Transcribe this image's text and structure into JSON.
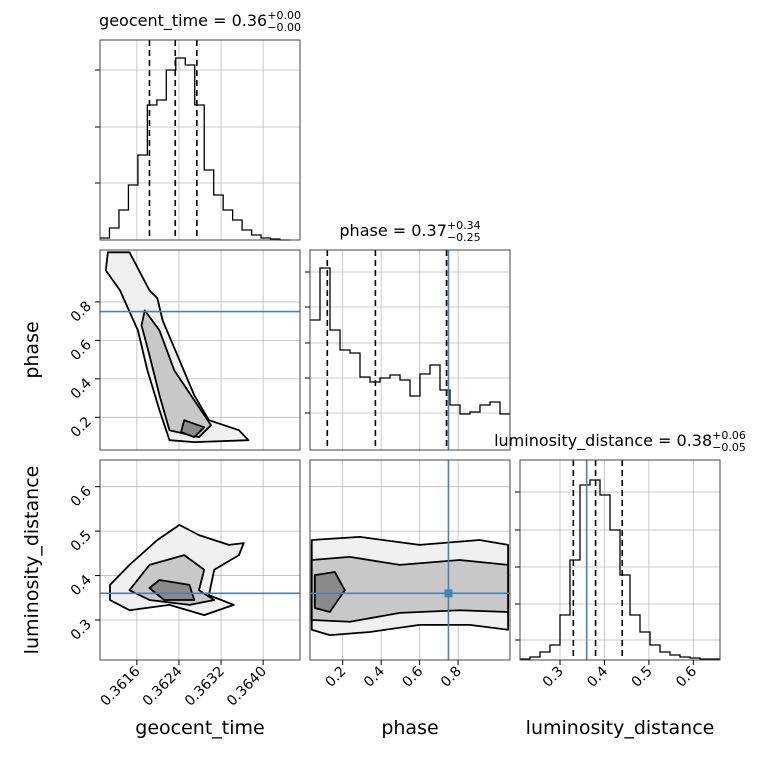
{
  "chart_data": {
    "type": "corner",
    "truth_color": "#4682b4",
    "grid": true,
    "parameters": [
      {
        "name": "geocent_time",
        "lim": [
          0.3609,
          0.3647
        ],
        "ticks": [
          0.3616,
          0.3624,
          0.3632,
          {
            "value": 0.364,
            "label": "0.3640"
          }
        ],
        "quantiles": [
          0.36184,
          0.36233,
          0.36274
        ],
        "title": {
          "text": "geocent_time = 0.36",
          "upper": "+0.00",
          "lower": "−0.00"
        },
        "hist": {
          "bins": [
            0.3609,
            0.36108,
            0.36126,
            0.36144,
            0.36162,
            0.3618,
            0.36198,
            0.36216,
            0.36234,
            0.36252,
            0.3627,
            0.36288,
            0.36306,
            0.36324,
            0.36342,
            0.3636,
            0.36378,
            0.36396,
            0.36414,
            0.36432,
            0.3645
          ],
          "counts": [
            2,
            12,
            30,
            55,
            85,
            135,
            140,
            170,
            182,
            175,
            135,
            70,
            45,
            30,
            20,
            10,
            5,
            2,
            1,
            0
          ],
          "ylim": [
            0,
            200
          ],
          "yticks": [
            57,
            113,
            170
          ]
        }
      },
      {
        "name": "phase",
        "lim": [
          0.03,
          1.07
        ],
        "ticks": [
          0.2,
          0.4,
          0.6,
          0.8
        ],
        "truth": 0.75,
        "quantiles": [
          0.12,
          0.37,
          0.74
        ],
        "title": {
          "text": "phase = 0.37",
          "upper": "+0.34",
          "lower": "−0.25"
        },
        "hist": {
          "bins": [
            0.03,
            0.082,
            0.134,
            0.186,
            0.238,
            0.29,
            0.342,
            0.394,
            0.446,
            0.498,
            0.55,
            0.602,
            0.654,
            0.706,
            0.758,
            0.81,
            0.862,
            0.914,
            0.966,
            1.018,
            1.07
          ],
          "counts": [
            130,
            182,
            120,
            100,
            97,
            73,
            68,
            72,
            75,
            70,
            54,
            76,
            85,
            60,
            45,
            36,
            38,
            45,
            48,
            36
          ],
          "ylim": [
            0,
            200
          ],
          "yticks": [
            37,
            72,
            107,
            143,
            178
          ]
        }
      },
      {
        "name": "luminosity_distance",
        "lim": [
          0.21,
          0.66
        ],
        "ticks": [
          0.3,
          0.4,
          0.5,
          0.6
        ],
        "truth": 0.36,
        "quantiles": [
          0.33,
          0.38,
          0.44
        ],
        "title": {
          "text": "luminosity_distance = 0.38",
          "upper": "+0.06",
          "lower": "−0.05"
        },
        "hist": {
          "bins": [
            0.21,
            0.2325,
            0.255,
            0.2775,
            0.3,
            0.3225,
            0.345,
            0.3675,
            0.39,
            0.4125,
            0.435,
            0.4575,
            0.48,
            0.5025,
            0.525,
            0.5475,
            0.57,
            0.5925,
            0.615,
            0.6375,
            0.66
          ],
          "counts": [
            1,
            3,
            8,
            15,
            45,
            100,
            175,
            180,
            165,
            130,
            85,
            45,
            28,
            15,
            8,
            5,
            3,
            2,
            1,
            1
          ],
          "ylim": [
            0,
            200
          ],
          "yticks": [
            20,
            56,
            93,
            130,
            168
          ]
        }
      }
    ],
    "pairs": [
      {
        "x": 0,
        "y": 1,
        "contours": [
          {
            "x": [
              0.36105,
              0.36146,
              0.36184,
              0.36199,
              0.36209,
              0.36241,
              0.36269,
              0.36297,
              0.36354,
              0.36372,
              0.36269,
              0.36222,
              0.36203,
              0.3618,
              0.36162,
              0.36128,
              0.36101
            ],
            "y": [
              1.058,
              1.058,
              0.86,
              0.819,
              0.704,
              0.497,
              0.315,
              0.185,
              0.133,
              0.081,
              0.071,
              0.081,
              0.237,
              0.445,
              0.652,
              0.86,
              0.964
            ]
          },
          {
            "x": [
              0.36175,
              0.36203,
              0.36231,
              0.36269,
              0.36301,
              0.36278,
              0.36222,
              0.36203,
              0.36184,
              0.36169
            ],
            "y": [
              0.756,
              0.652,
              0.445,
              0.289,
              0.159,
              0.097,
              0.133,
              0.315,
              0.523,
              0.678
            ]
          },
          {
            "x": [
              0.3625,
              0.36288,
              0.36269,
              0.36244
            ],
            "y": [
              0.185,
              0.148,
              0.097,
              0.123
            ]
          }
        ]
      },
      {
        "x": 0,
        "y": 2,
        "contours": [
          {
            "x": [
              0.36109,
              0.36146,
              0.36199,
              0.36241,
              0.36278,
              0.36335,
              0.36363,
              0.36354,
              0.36307,
              0.36297,
              0.36344,
              0.36288,
              0.36222,
              0.36146,
              0.36109
            ],
            "y": [
              0.379,
              0.424,
              0.48,
              0.514,
              0.491,
              0.469,
              0.473,
              0.446,
              0.413,
              0.356,
              0.334,
              0.311,
              0.334,
              0.322,
              0.345
            ]
          },
          {
            "x": [
              0.36146,
              0.36184,
              0.3625,
              0.36288,
              0.36278,
              0.36307,
              0.3626,
              0.36184
            ],
            "y": [
              0.367,
              0.424,
              0.446,
              0.413,
              0.367,
              0.345,
              0.334,
              0.345
            ]
          },
          {
            "x": [
              0.36184,
              0.36203,
              0.3626,
              0.36269,
              0.36212
            ],
            "y": [
              0.372,
              0.39,
              0.379,
              0.345,
              0.345
            ]
          }
        ]
      },
      {
        "x": 1,
        "y": 2,
        "contours": [
          {
            "x": [
              0.039,
              0.289,
              0.6,
              0.912,
              1.06,
              1.06,
              0.86,
              0.6,
              0.341,
              0.133,
              0.039
            ],
            "y": [
              0.48,
              0.487,
              0.469,
              0.48,
              0.469,
              0.278,
              0.289,
              0.289,
              0.273,
              0.266,
              0.278
            ]
          },
          {
            "x": [
              0.039,
              0.237,
              0.497,
              0.808,
              1.06,
              1.06,
              0.808,
              0.497,
              0.237,
              0.039
            ],
            "y": [
              0.435,
              0.442,
              0.424,
              0.435,
              0.424,
              0.318,
              0.322,
              0.316,
              0.296,
              0.3
            ]
          },
          {
            "x": [
              0.055,
              0.159,
              0.211,
              0.133,
              0.055
            ],
            "y": [
              0.401,
              0.408,
              0.367,
              0.318,
              0.327
            ]
          }
        ]
      }
    ]
  }
}
